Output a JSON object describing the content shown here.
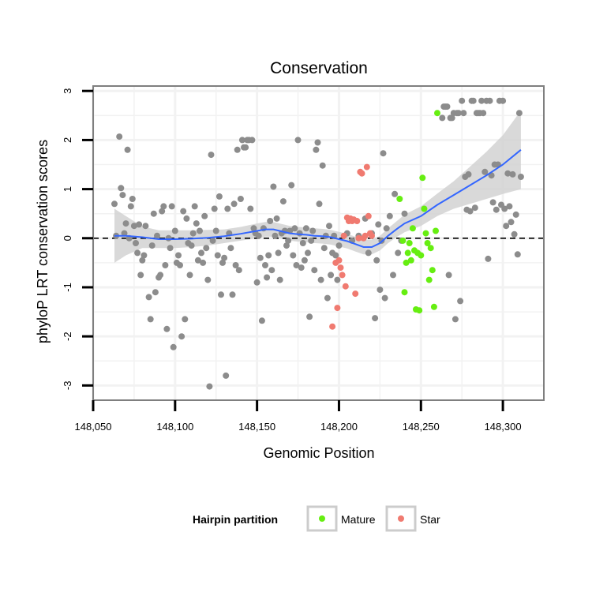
{
  "chart_data": {
    "type": "scatter",
    "title": "Conservation",
    "xlabel": "Genomic Position",
    "ylabel": "phyloP LRT conservation scores",
    "xlim": [
      148050,
      148325
    ],
    "ylim": [
      -3.3,
      3.1
    ],
    "x_ticks": [
      148050,
      148100,
      148150,
      148200,
      148250,
      148300
    ],
    "x_tick_labels": [
      "148,050",
      "148,100",
      "148,150",
      "148,200",
      "148,250",
      "148,300"
    ],
    "y_ticks": [
      -3,
      -2,
      -1,
      0,
      1,
      2,
      3
    ],
    "y_tick_labels": [
      "-3",
      "-2",
      "-1",
      "0",
      "1",
      "2",
      "3"
    ],
    "grid": true,
    "reference_line": {
      "y": 0,
      "style": "dashed",
      "color": "#000000"
    },
    "colors": {
      "other": "#8c8c8c",
      "Mature": "#66ee11",
      "Star": "#f07a70",
      "smooth": "#3366ff",
      "ribbon": "#cfcfcf",
      "panel_border": "#7f7f7f",
      "grid": "#f2f2f2"
    },
    "legend": {
      "title": "Hairpin partition",
      "position": "bottom",
      "entries": [
        "Mature",
        "Star"
      ]
    },
    "series": [
      {
        "group": "other",
        "points": [
          [
            148063,
            0.7
          ],
          [
            148064,
            0.05
          ],
          [
            148066,
            2.07
          ],
          [
            148067,
            1.02
          ],
          [
            148068,
            0.88
          ],
          [
            148069,
            0.1
          ],
          [
            148070,
            0.3
          ],
          [
            148071,
            1.8
          ],
          [
            148072,
            0.0
          ],
          [
            148073,
            0.65
          ],
          [
            148074,
            0.8
          ],
          [
            148075,
            0.25
          ],
          [
            148076,
            -0.1
          ],
          [
            148077,
            -0.3
          ],
          [
            148078,
            0.28
          ],
          [
            148079,
            -0.75
          ],
          [
            148080,
            -0.45
          ],
          [
            148081,
            -0.35
          ],
          [
            148082,
            0.25
          ],
          [
            148084,
            -1.2
          ],
          [
            148085,
            -1.65
          ],
          [
            148086,
            -0.15
          ],
          [
            148087,
            0.5
          ],
          [
            148088,
            -1.1
          ],
          [
            148089,
            0.05
          ],
          [
            148090,
            -0.8
          ],
          [
            148091,
            -0.75
          ],
          [
            148092,
            0.55
          ],
          [
            148093,
            0.65
          ],
          [
            148094,
            -0.55
          ],
          [
            148095,
            -1.85
          ],
          [
            148096,
            0.0
          ],
          [
            148097,
            -0.2
          ],
          [
            148098,
            0.65
          ],
          [
            148099,
            -2.22
          ],
          [
            148100,
            0.15
          ],
          [
            148101,
            -0.5
          ],
          [
            148102,
            -0.35
          ],
          [
            148103,
            -0.55
          ],
          [
            148104,
            -2.0
          ],
          [
            148105,
            0.55
          ],
          [
            148106,
            -1.65
          ],
          [
            148107,
            0.4
          ],
          [
            148108,
            -0.1
          ],
          [
            148109,
            -0.75
          ],
          [
            148110,
            -0.15
          ],
          [
            148111,
            0.1
          ],
          [
            148112,
            0.65
          ],
          [
            148113,
            0.3
          ],
          [
            148114,
            -0.45
          ],
          [
            148115,
            0.15
          ],
          [
            148116,
            -0.3
          ],
          [
            148117,
            -0.5
          ],
          [
            148118,
            0.45
          ],
          [
            148119,
            -0.2
          ],
          [
            148120,
            -0.85
          ],
          [
            148121,
            -3.02
          ],
          [
            148122,
            1.7
          ],
          [
            148123,
            -0.05
          ],
          [
            148124,
            0.6
          ],
          [
            148125,
            0.15
          ],
          [
            148126,
            -0.35
          ],
          [
            148127,
            0.85
          ],
          [
            148128,
            -1.15
          ],
          [
            148129,
            -0.5
          ],
          [
            148130,
            -0.4
          ],
          [
            148131,
            -2.8
          ],
          [
            148132,
            0.6
          ],
          [
            148133,
            0.1
          ],
          [
            148134,
            -0.2
          ],
          [
            148135,
            -1.15
          ],
          [
            148136,
            0.7
          ],
          [
            148137,
            -0.55
          ],
          [
            148138,
            1.8
          ],
          [
            148139,
            -0.65
          ],
          [
            148140,
            0.8
          ],
          [
            148141,
            2.0
          ],
          [
            148142,
            1.85
          ],
          [
            148143,
            1.85
          ],
          [
            148144,
            2.0
          ],
          [
            148145,
            2.0
          ],
          [
            148146,
            0.6
          ],
          [
            148147,
            2.0
          ],
          [
            148148,
            0.2
          ],
          [
            148149,
            0.1
          ],
          [
            148150,
            -0.9
          ],
          [
            148151,
            0.05
          ],
          [
            148152,
            -0.4
          ],
          [
            148153,
            -1.68
          ],
          [
            148154,
            0.2
          ],
          [
            148155,
            -0.55
          ],
          [
            148156,
            -0.8
          ],
          [
            148157,
            -0.35
          ],
          [
            148158,
            0.35
          ],
          [
            148159,
            -0.65
          ],
          [
            148160,
            1.05
          ],
          [
            148161,
            0.05
          ],
          [
            148162,
            0.4
          ],
          [
            148163,
            -0.3
          ],
          [
            148164,
            -0.85
          ],
          [
            148165,
            0.1
          ],
          [
            148166,
            0.75
          ],
          [
            148167,
            0.15
          ],
          [
            148168,
            -0.15
          ],
          [
            148169,
            -0.05
          ],
          [
            148170,
            0.15
          ],
          [
            148171,
            1.08
          ],
          [
            148172,
            -0.35
          ],
          [
            148173,
            0.2
          ],
          [
            148174,
            -0.55
          ],
          [
            148175,
            2.0
          ],
          [
            148176,
            0.1
          ],
          [
            148177,
            -0.6
          ],
          [
            148178,
            -0.1
          ],
          [
            148179,
            -0.45
          ],
          [
            148180,
            0.2
          ],
          [
            148181,
            -0.3
          ],
          [
            148182,
            -1.6
          ],
          [
            148183,
            -0.05
          ],
          [
            148184,
            0.15
          ],
          [
            148185,
            -0.65
          ],
          [
            148186,
            1.8
          ],
          [
            148187,
            1.95
          ],
          [
            148188,
            0.7
          ],
          [
            148189,
            -0.85
          ],
          [
            148190,
            1.48
          ],
          [
            148191,
            -0.2
          ],
          [
            148192,
            0.05
          ],
          [
            148193,
            -1.22
          ],
          [
            148194,
            0.25
          ],
          [
            148195,
            -0.75
          ],
          [
            148196,
            -0.3
          ],
          [
            148197,
            0.05
          ],
          [
            148198,
            -0.35
          ],
          [
            148199,
            -0.85
          ],
          [
            148200,
            -0.15
          ],
          [
            148205,
            0.1
          ],
          [
            148208,
            -0.05
          ],
          [
            148212,
            0.05
          ],
          [
            148216,
            0.4
          ],
          [
            148218,
            -0.3
          ],
          [
            148220,
            0.1
          ],
          [
            148222,
            -1.63
          ],
          [
            148223,
            -0.45
          ],
          [
            148224,
            0.28
          ],
          [
            148225,
            -1.05
          ],
          [
            148226,
            -0.05
          ],
          [
            148227,
            1.73
          ],
          [
            148228,
            -1.22
          ],
          [
            148229,
            0.2
          ],
          [
            148231,
            0.45
          ],
          [
            148233,
            -0.75
          ],
          [
            148234,
            0.9
          ],
          [
            148236,
            -0.3
          ],
          [
            148238,
            -0.05
          ],
          [
            148240,
            0.5
          ],
          [
            148263,
            2.45
          ],
          [
            148264,
            2.68
          ],
          [
            148265,
            2.68
          ],
          [
            148266,
            2.68
          ],
          [
            148267,
            -0.75
          ],
          [
            148268,
            2.45
          ],
          [
            148269,
            2.45
          ],
          [
            148270,
            2.55
          ],
          [
            148271,
            -1.65
          ],
          [
            148272,
            2.55
          ],
          [
            148273,
            2.55
          ],
          [
            148274,
            -1.28
          ],
          [
            148275,
            2.8
          ],
          [
            148276,
            2.55
          ],
          [
            148277,
            1.25
          ],
          [
            148278,
            0.58
          ],
          [
            148279,
            1.3
          ],
          [
            148280,
            0.55
          ],
          [
            148281,
            2.8
          ],
          [
            148282,
            2.8
          ],
          [
            148283,
            0.62
          ],
          [
            148284,
            2.55
          ],
          [
            148285,
            2.55
          ],
          [
            148286,
            2.55
          ],
          [
            148287,
            2.8
          ],
          [
            148288,
            2.55
          ],
          [
            148289,
            1.35
          ],
          [
            148290,
            2.8
          ],
          [
            148291,
            -0.42
          ],
          [
            148292,
            2.8
          ],
          [
            148293,
            1.28
          ],
          [
            148294,
            0.73
          ],
          [
            148295,
            1.5
          ],
          [
            148296,
            0.58
          ],
          [
            148297,
            1.5
          ],
          [
            148298,
            2.8
          ],
          [
            148299,
            0.68
          ],
          [
            148300,
            2.8
          ],
          [
            148301,
            0.6
          ],
          [
            148302,
            0.25
          ],
          [
            148303,
            1.32
          ],
          [
            148304,
            0.65
          ],
          [
            148305,
            0.33
          ],
          [
            148306,
            1.3
          ],
          [
            148307,
            0.08
          ],
          [
            148308,
            0.48
          ],
          [
            148309,
            -0.33
          ],
          [
            148310,
            2.55
          ],
          [
            148311,
            1.25
          ]
        ]
      },
      {
        "group": "Star",
        "name": "Star",
        "points": [
          [
            148196,
            -1.8
          ],
          [
            148198,
            -0.5
          ],
          [
            148199,
            -1.42
          ],
          [
            148200,
            -0.45
          ],
          [
            148201,
            -0.6
          ],
          [
            148202,
            -0.75
          ],
          [
            148203,
            0.05
          ],
          [
            148204,
            -0.98
          ],
          [
            148205,
            0.42
          ],
          [
            148206,
            0.35
          ],
          [
            148207,
            0.4
          ],
          [
            148208,
            0.35
          ],
          [
            148209,
            0.38
          ],
          [
            148210,
            -1.13
          ],
          [
            148211,
            0.35
          ],
          [
            148212,
            0.0
          ],
          [
            148213,
            1.35
          ],
          [
            148214,
            1.32
          ],
          [
            148215,
            0.0
          ],
          [
            148216,
            0.05
          ],
          [
            148217,
            1.45
          ],
          [
            148218,
            0.45
          ],
          [
            148219,
            0.1
          ],
          [
            148220,
            0.05
          ]
        ]
      },
      {
        "group": "Mature",
        "name": "Mature",
        "points": [
          [
            148237,
            0.8
          ],
          [
            148239,
            -0.05
          ],
          [
            148240,
            -1.1
          ],
          [
            148241,
            -0.5
          ],
          [
            148242,
            -0.3
          ],
          [
            148243,
            -0.1
          ],
          [
            148244,
            -0.45
          ],
          [
            148245,
            0.2
          ],
          [
            148246,
            -0.25
          ],
          [
            148247,
            -1.45
          ],
          [
            148248,
            -0.3
          ],
          [
            148249,
            -1.47
          ],
          [
            148250,
            -0.35
          ],
          [
            148251,
            1.23
          ],
          [
            148252,
            0.6
          ],
          [
            148253,
            0.1
          ],
          [
            148254,
            -0.1
          ],
          [
            148255,
            -0.85
          ],
          [
            148256,
            -0.2
          ],
          [
            148257,
            -0.65
          ],
          [
            148258,
            -1.4
          ],
          [
            148259,
            0.15
          ],
          [
            148260,
            2.55
          ]
        ]
      }
    ],
    "smooth_line": {
      "x": [
        148063,
        148070,
        148080,
        148090,
        148100,
        148110,
        148120,
        148130,
        148140,
        148150,
        148155,
        148160,
        148165,
        148170,
        148175,
        148180,
        148185,
        148190,
        148195,
        148200,
        148205,
        148210,
        148215,
        148220,
        148225,
        148230,
        148235,
        148240,
        148250,
        148260,
        148270,
        148280,
        148290,
        148300,
        148311
      ],
      "y": [
        0.05,
        0.05,
        0.02,
        -0.02,
        -0.02,
        -0.01,
        0.01,
        0.04,
        0.09,
        0.15,
        0.18,
        0.18,
        0.14,
        0.1,
        0.08,
        0.07,
        0.05,
        0.04,
        0.02,
        -0.02,
        -0.06,
        -0.12,
        -0.18,
        -0.18,
        -0.1,
        0.05,
        0.18,
        0.3,
        0.45,
        0.68,
        0.88,
        1.08,
        1.28,
        1.5,
        1.8
      ],
      "lower": [
        -0.5,
        -0.35,
        -0.2,
        -0.2,
        -0.2,
        -0.18,
        -0.15,
        -0.1,
        -0.05,
        0.0,
        0.03,
        0.03,
        -0.01,
        -0.05,
        -0.07,
        -0.08,
        -0.1,
        -0.11,
        -0.13,
        -0.17,
        -0.21,
        -0.27,
        -0.33,
        -0.33,
        -0.25,
        -0.1,
        0.02,
        0.12,
        0.25,
        0.45,
        0.6,
        0.7,
        0.8,
        0.9,
        1.0
      ],
      "upper": [
        0.6,
        0.45,
        0.24,
        0.16,
        0.16,
        0.16,
        0.17,
        0.18,
        0.23,
        0.3,
        0.33,
        0.33,
        0.29,
        0.25,
        0.23,
        0.22,
        0.2,
        0.19,
        0.17,
        0.13,
        0.09,
        0.03,
        -0.03,
        -0.03,
        0.05,
        0.2,
        0.34,
        0.48,
        0.65,
        0.91,
        1.16,
        1.46,
        1.76,
        2.1,
        2.6
      ]
    }
  }
}
